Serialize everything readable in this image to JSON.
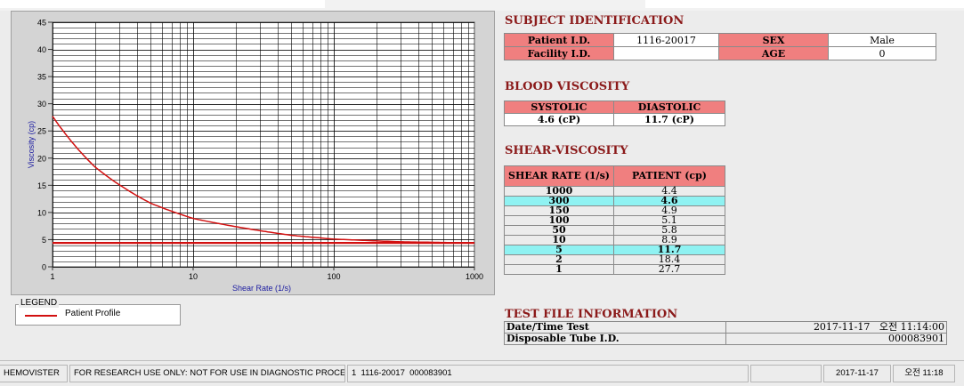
{
  "chart_data": {
    "type": "line",
    "xscale": "log",
    "xlim": [
      1,
      1000
    ],
    "ylim": [
      0,
      45
    ],
    "xlabel": "Shear Rate (1/s)",
    "ylabel": "Viscosity (cp)",
    "xticks": [
      "1",
      "10",
      "100",
      "1000"
    ],
    "yticks": [
      "0",
      "5",
      "10",
      "15",
      "20",
      "25",
      "30",
      "35",
      "40",
      "45"
    ],
    "series": [
      {
        "name": "Patient Profile",
        "x": [
          1,
          2,
          5,
          10,
          50,
          100,
          150,
          300,
          1000
        ],
        "y": [
          27.7,
          18.4,
          11.7,
          8.9,
          5.8,
          5.1,
          4.9,
          4.6,
          4.4
        ],
        "color": "#d21010"
      },
      {
        "x": [
          1,
          1000
        ],
        "y": [
          4.4,
          4.4
        ],
        "color": "#d21010"
      }
    ]
  },
  "legend": {
    "title": "LEGEND",
    "label": "Patient Profile"
  },
  "subject": {
    "title": "SUBJECT IDENTIFICATION",
    "patient_id_label": "Patient I.D.",
    "patient_id": "1116-20017",
    "sex_label": "SEX",
    "sex": "Male",
    "facility_label": "Facility I.D.",
    "facility": "",
    "age_label": "AGE",
    "age": "0"
  },
  "blood_viscosity": {
    "title": "BLOOD VISCOSITY",
    "systolic_label": "SYSTOLIC",
    "diastolic_label": "DIASTOLIC",
    "systolic": "4.6 (cP)",
    "diastolic": "11.7 (cP)"
  },
  "shear": {
    "title": "SHEAR-VISCOSITY",
    "col_rate": "SHEAR RATE (1/s)",
    "col_patient": "PATIENT (cp)",
    "rows": [
      {
        "rate": "1000",
        "value": "4.4"
      },
      {
        "rate": "300",
        "value": "4.6"
      },
      {
        "rate": "150",
        "value": "4.9"
      },
      {
        "rate": "100",
        "value": "5.1"
      },
      {
        "rate": "50",
        "value": "5.8"
      },
      {
        "rate": "10",
        "value": "8.9"
      },
      {
        "rate": "5",
        "value": "11.7"
      },
      {
        "rate": "2",
        "value": "18.4"
      },
      {
        "rate": "1",
        "value": "27.7"
      }
    ]
  },
  "test_file": {
    "title": "TEST FILE INFORMATION",
    "date_label": "Date/Time Test",
    "date_value": "2017-11-17   오전 11:14:00",
    "tube_label": "Disposable Tube I.D.",
    "tube_value": "000083901"
  },
  "statusbar": {
    "app": "HEMOVISTER",
    "notice": "FOR RESEARCH USE ONLY: NOT FOR USE IN DIAGNOSTIC PROCEDURES",
    "record": "1  1116-20017  000083901",
    "date": "2017-11-17",
    "time": "오전 11:18"
  },
  "colors": {
    "header_red": "#f07f7f",
    "highlight_cyan": "#8ff2f2",
    "title_maroon": "#8b1a1a",
    "curve_red": "#d21010"
  }
}
